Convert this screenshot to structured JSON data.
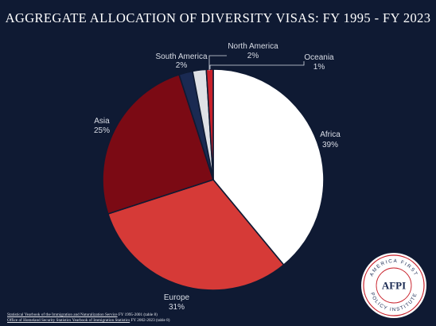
{
  "title": "AGGREGATE ALLOCATION OF DIVERSITY VISAS: FY 1995 - FY 2023",
  "chart_data": {
    "type": "pie",
    "title": "AGGREGATE ALLOCATION OF DIVERSITY VISAS: FY 1995 - FY 2023",
    "start_angle_deg": 0,
    "direction": "clockwise",
    "slices": [
      {
        "label": "Africa",
        "pct_label": "39%",
        "value": 39,
        "color": "#ffffff"
      },
      {
        "label": "Europe",
        "pct_label": "31%",
        "value": 31,
        "color": "#d63a37"
      },
      {
        "label": "Asia",
        "pct_label": "25%",
        "value": 25,
        "color": "#7b0a14"
      },
      {
        "label": "South America",
        "pct_label": "2%",
        "value": 2,
        "color": "#1a2a52"
      },
      {
        "label": "North America",
        "pct_label": "2%",
        "value": 2,
        "color": "#dfe1e6"
      },
      {
        "label": "Oceania",
        "pct_label": "1%",
        "value": 1,
        "color": "#c8202a"
      }
    ],
    "legend": "none"
  },
  "sources": [
    {
      "link": "Statistical Yearbook of the Immigration and Naturalization Service",
      "rest": " FY 1995-2001 (table 8)"
    },
    {
      "link": "Office of Homeland Security Statistics Yearbook of Immigration Statistics",
      "rest": " FY 2002-2023 (table 8)"
    }
  ],
  "logo": {
    "arc_top": "AMERICA FIRST",
    "arc_bottom": "POLICY INSTITUTE",
    "mark": "AFPI",
    "colors": {
      "ring": "#ffffff",
      "border": "#c8202a",
      "text": "#1a2a52"
    }
  }
}
